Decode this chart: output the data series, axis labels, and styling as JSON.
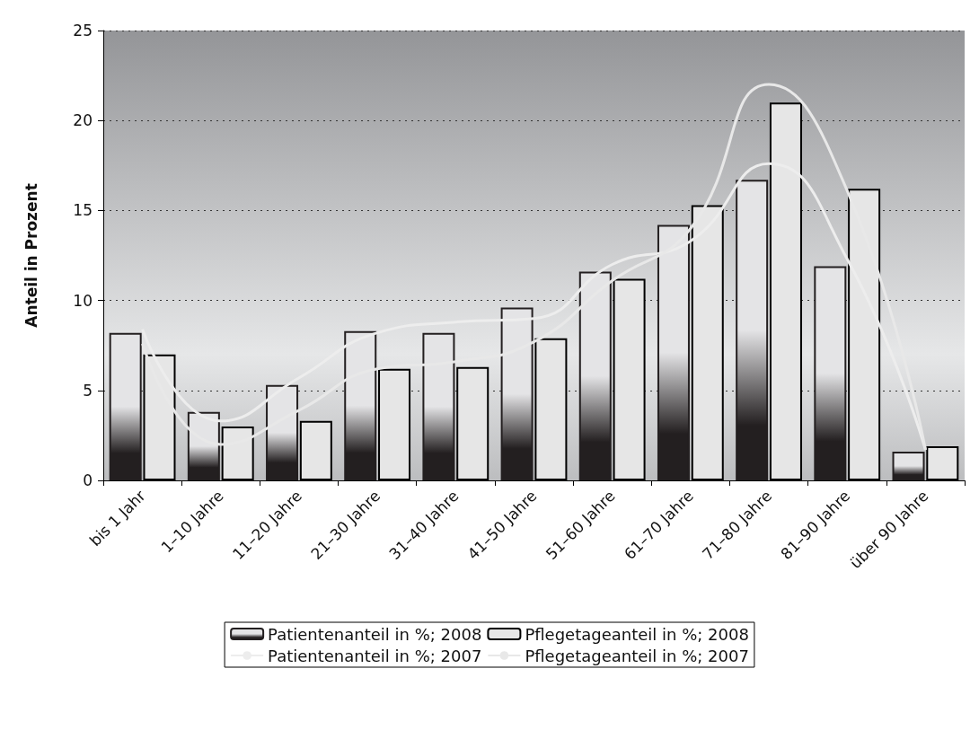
{
  "chart_data": {
    "type": "bar",
    "ylabel": "Anteil in Prozent",
    "categories": [
      "bis 1 Jahr",
      "1–10 Jahre",
      "11–20 Jahre",
      "21–30 Jahre",
      "31–40 Jahre",
      "41–50 Jahre",
      "51–60 Jahre",
      "61–70 Jahre",
      "71–80 Jahre",
      "81–90 Jahre",
      "über 90 Jahre"
    ],
    "series": [
      {
        "name": "Patientenanteil in %; 2008",
        "color": "#231f20",
        "values": [
          8.2,
          3.8,
          5.3,
          8.3,
          8.2,
          9.6,
          11.6,
          14.2,
          16.7,
          11.9,
          1.6
        ]
      },
      {
        "name": "Pflegetageanteil in %; 2008",
        "color": "#e6e6e6",
        "values": [
          7.0,
          3.0,
          3.3,
          6.2,
          6.3,
          7.9,
          11.2,
          15.3,
          21.0,
          16.2,
          1.9
        ]
      },
      {
        "name": "Patientenanteil in %; 2007",
        "type": "line",
        "color": "#ededed",
        "values": [
          8.4,
          3.3,
          5.7,
          8.2,
          8.8,
          9.0,
          12.0,
          13.3,
          17.6,
          12.3,
          1.7
        ]
      },
      {
        "name": "Pflegetageanteil in %; 2007",
        "type": "line",
        "color": "#e8e8e8",
        "values": [
          7.6,
          2.0,
          3.9,
          6.2,
          6.6,
          7.7,
          11.1,
          14.0,
          22.0,
          16.1,
          1.7
        ]
      }
    ],
    "ylim": [
      0,
      25
    ],
    "yticks": [
      0,
      5,
      10,
      15,
      20,
      25
    ],
    "grid": "y",
    "legend": "bottom",
    "marker": "none",
    "line_style": "solid"
  }
}
